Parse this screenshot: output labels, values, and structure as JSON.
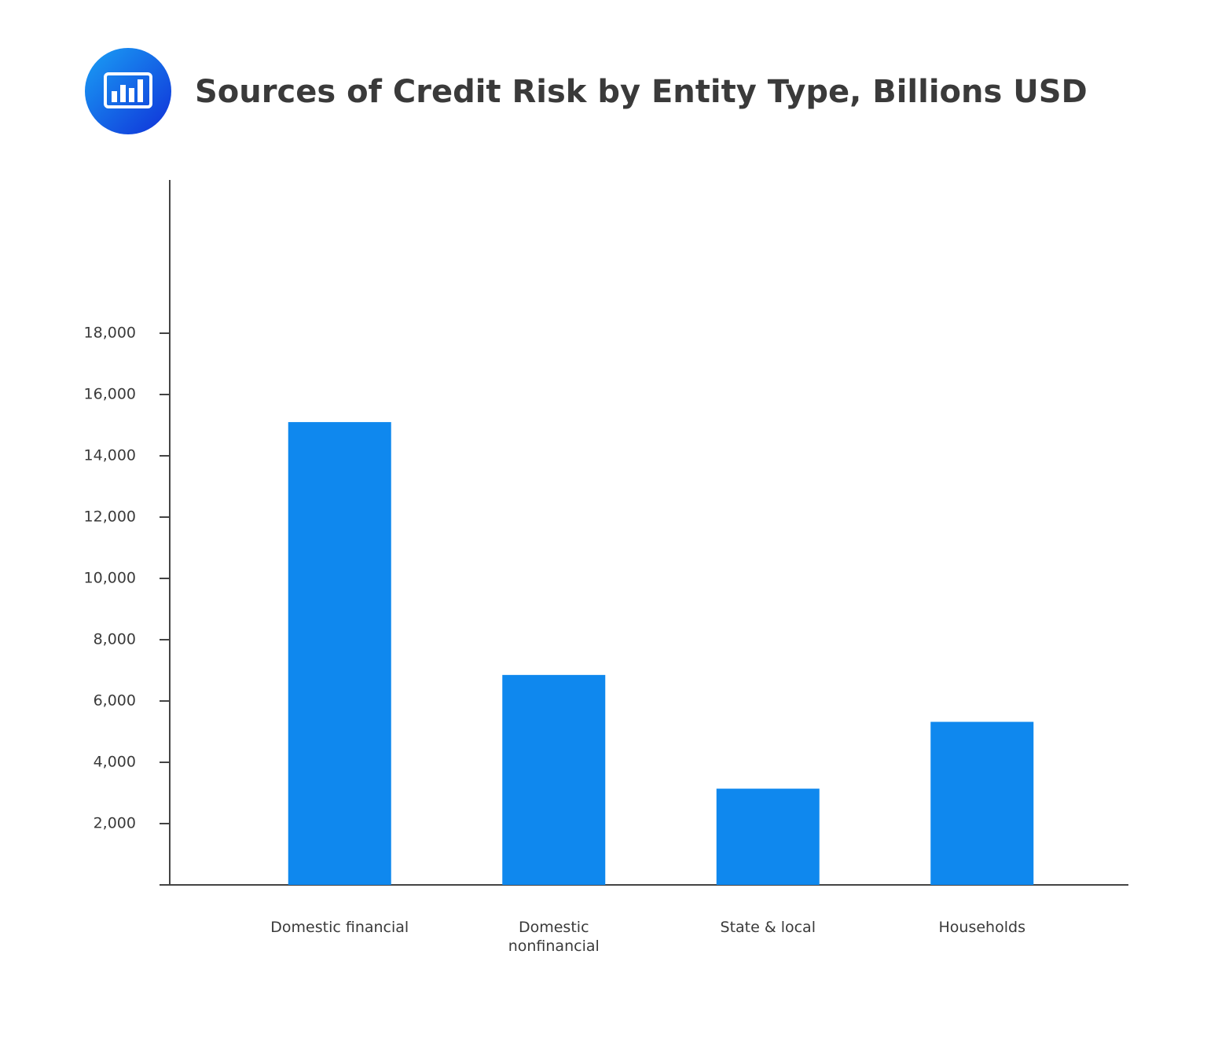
{
  "chart_data": {
    "type": "bar",
    "title": "Sources of Credit Risk by Entity Type, Billions USD",
    "categories": [
      "Domestic financial",
      "Domestic nonfinancial",
      "State & local",
      "Households"
    ],
    "values": [
      15100,
      6850,
      3140,
      5320
    ],
    "color": "#0f88ee",
    "ylim": [
      0,
      23000
    ],
    "yticks": [
      {
        "value": 2000,
        "label": "2,000"
      },
      {
        "value": 4000,
        "label": "4,000"
      },
      {
        "value": 6000,
        "label": "6,000"
      },
      {
        "value": 8000,
        "label": "8,000"
      },
      {
        "value": 10000,
        "label": "10,000"
      },
      {
        "value": 12000,
        "label": "12,000"
      },
      {
        "value": 14000,
        "label": "14,000"
      },
      {
        "value": 16000,
        "label": "16,000"
      },
      {
        "value": 18000,
        "label": "18,000"
      }
    ],
    "grid": false
  }
}
